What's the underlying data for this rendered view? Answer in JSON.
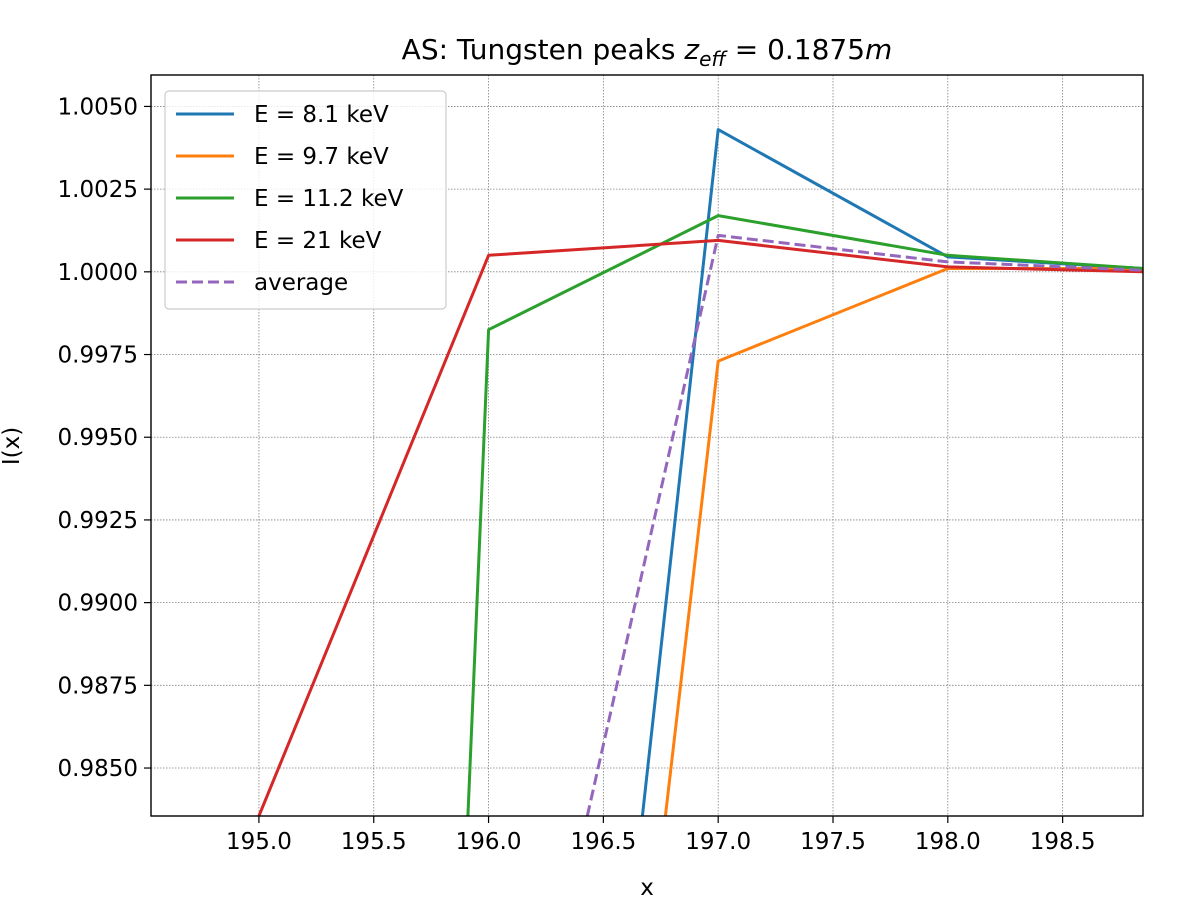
{
  "chart_data": {
    "type": "line",
    "title_prefix": "AS: Tungsten peaks ",
    "title_z": "z",
    "title_sub": "eff",
    "title_suffix": " = 0.1875",
    "title_unit": "m",
    "xlabel": "x",
    "ylabel": "I(x)",
    "xlim": [
      194.53,
      198.85
    ],
    "ylim": [
      0.98355,
      1.00595
    ],
    "xticks": [
      "195.0",
      "195.5",
      "196.0",
      "196.5",
      "197.0",
      "197.5",
      "198.0",
      "198.5"
    ],
    "yticks": [
      "0.9850",
      "0.9875",
      "0.9900",
      "0.9925",
      "0.9950",
      "0.9975",
      "1.0000",
      "1.0025",
      "1.0050"
    ],
    "grid": true,
    "legend_position": "upper-left",
    "series": [
      {
        "name": "E = 8.1 keV",
        "color": "#1f77b4",
        "dash": "solid",
        "x": [
          196.67,
          197.0,
          198.0,
          198.85
        ],
        "y": [
          0.98355,
          1.0043,
          1.00045,
          1.0001
        ]
      },
      {
        "name": "E = 9.7 keV",
        "color": "#ff7f0e",
        "dash": "solid",
        "x": [
          196.77,
          197.0,
          198.0,
          198.85
        ],
        "y": [
          0.98355,
          0.9973,
          1.0001,
          1.0001
        ]
      },
      {
        "name": "E = 11.2 keV",
        "color": "#2ca02c",
        "dash": "solid",
        "x": [
          195.91,
          196.0,
          197.0,
          198.0,
          198.85
        ],
        "y": [
          0.98355,
          0.99825,
          1.0017,
          1.0005,
          1.0001
        ]
      },
      {
        "name": "E = 21 keV",
        "color": "#d62728",
        "dash": "solid",
        "x": [
          195.0,
          196.0,
          197.0,
          198.0,
          198.85
        ],
        "y": [
          0.98355,
          1.0005,
          1.00095,
          1.00015,
          1.0
        ]
      },
      {
        "name": "average",
        "color": "#9467bd",
        "dash": "dashed",
        "x": [
          196.43,
          197.0,
          198.0,
          198.85
        ],
        "y": [
          0.98355,
          1.0011,
          1.0003,
          1.00005
        ]
      }
    ]
  }
}
